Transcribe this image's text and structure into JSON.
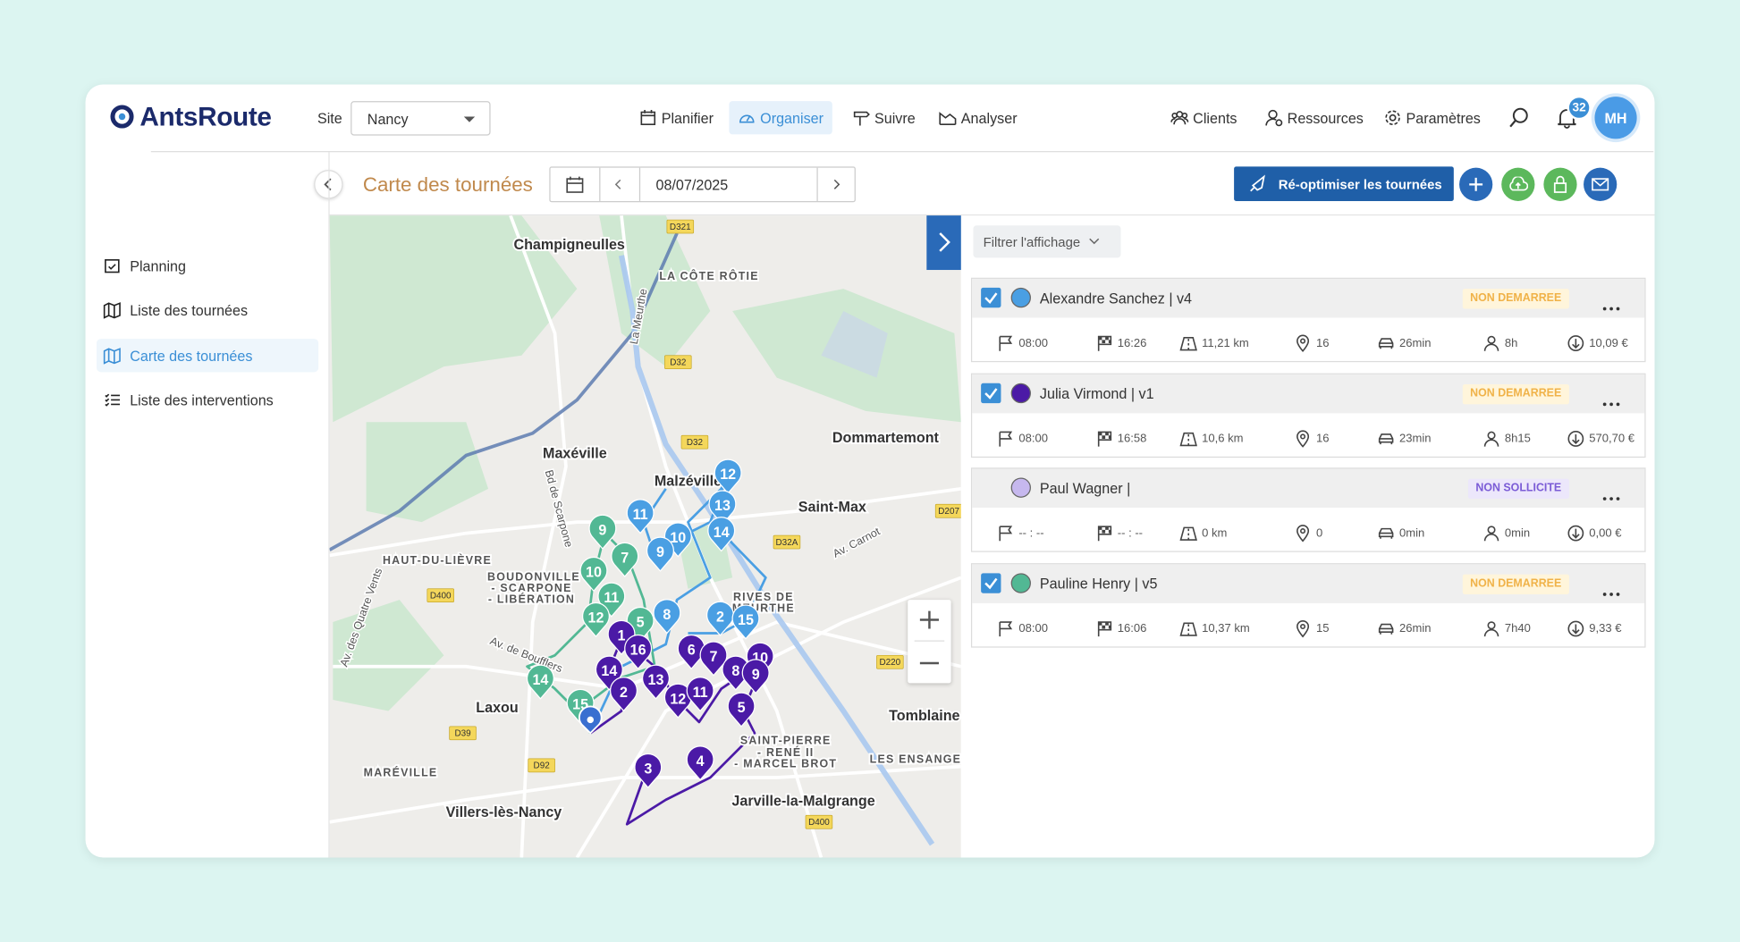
{
  "header": {
    "logo": "AntsRoute",
    "site_label": "Site",
    "site_value": "Nancy",
    "nav": [
      "Planifier",
      "Organiser",
      "Suivre",
      "Analyser"
    ],
    "nav_active": 1,
    "right_nav": [
      "Clients",
      "Ressources",
      "Paramètres"
    ],
    "notifications": 32,
    "avatar": "MH"
  },
  "sidebar": {
    "items": [
      "Planning",
      "Liste des tournées",
      "Carte des tournées",
      "Liste des interventions"
    ],
    "active": 2
  },
  "toolbar": {
    "title": "Carte des tournées",
    "date": "08/07/2025",
    "reoptimize": "Ré-optimiser les tournées"
  },
  "panel": {
    "filter": "Filtrer l'affichage",
    "routes": [
      {
        "name": "Alexandre Sanchez | v4",
        "color": "#4a9fe3",
        "checked": true,
        "status": "NON DEMARREE",
        "status_color": "#f0b248",
        "status_bg": "#fff5db",
        "start": "08:00",
        "end": "16:26",
        "distance": "11,21 km",
        "stops": 16,
        "drive": "26min",
        "duration": "8h",
        "cost": "10,09 €"
      },
      {
        "name": "Julia Virmond | v1",
        "color": "#4b1aa6",
        "checked": true,
        "status": "NON DEMARREE",
        "status_color": "#f0b248",
        "status_bg": "#fff5db",
        "start": "08:00",
        "end": "16:58",
        "distance": "10,6 km",
        "stops": 16,
        "drive": "23min",
        "duration": "8h15",
        "cost": "570,70 €"
      },
      {
        "name": "Paul Wagner |",
        "color": "#c6b8ee",
        "checked": false,
        "status": "NON SOLLICITE",
        "status_color": "#7b5cd6",
        "status_bg": "#ece7fb",
        "start": "-- : --",
        "end": "-- : --",
        "distance": "0 km",
        "stops": 0,
        "drive": "0min",
        "duration": "0min",
        "cost": "0,00 €"
      },
      {
        "name": "Pauline Henry | v5",
        "color": "#52b894",
        "checked": true,
        "status": "NON DEMARREE",
        "status_color": "#f0b248",
        "status_bg": "#fff5db",
        "start": "08:00",
        "end": "16:06",
        "distance": "10,37 km",
        "stops": 15,
        "drive": "26min",
        "duration": "7h40",
        "cost": "9,33 €"
      }
    ]
  },
  "map": {
    "labels": [
      "Champigneulles",
      "LA CÔTE RÔTIE",
      "Maxéville",
      "Malzéville",
      "Dommartemont",
      "Saint-Max",
      "HAUT-DU-LIÈVRE",
      "BOUDONVILLE",
      "- SCARPONE",
      "- LIBÉRATION",
      "RIVES DE",
      "MEURTHE",
      "Laxou",
      "MARÉVILLE",
      "Villers-lès-Nancy",
      "Jarville-la-Malgrange",
      "Tomblaine",
      "LES ENSANGE",
      "SAINT-PIERRE",
      "- RENÉ II",
      "- MARCEL BROT"
    ],
    "streets": [
      "Bd de Scarpone",
      "Av. de Boufflers",
      "Av. Carnot",
      "La Meurthe",
      "Av. des Quatre Vents"
    ],
    "roads": [
      "D321",
      "D32",
      "D32",
      "D207",
      "D32A",
      "D400",
      "D39",
      "D92",
      "D220",
      "D400"
    ],
    "marker_groups": [
      {
        "color": "#4a9fe3",
        "labels": [
          12,
          13,
          14,
          11,
          10,
          9,
          8,
          2,
          15
        ]
      },
      {
        "color": "#52b894",
        "labels": [
          9,
          7,
          10,
          11,
          12,
          5,
          14,
          15
        ]
      },
      {
        "color": "#4b1aa6",
        "labels": [
          1,
          16,
          14,
          13,
          2,
          12,
          11,
          6,
          7,
          8,
          10,
          9,
          5,
          4,
          3
        ]
      }
    ]
  }
}
